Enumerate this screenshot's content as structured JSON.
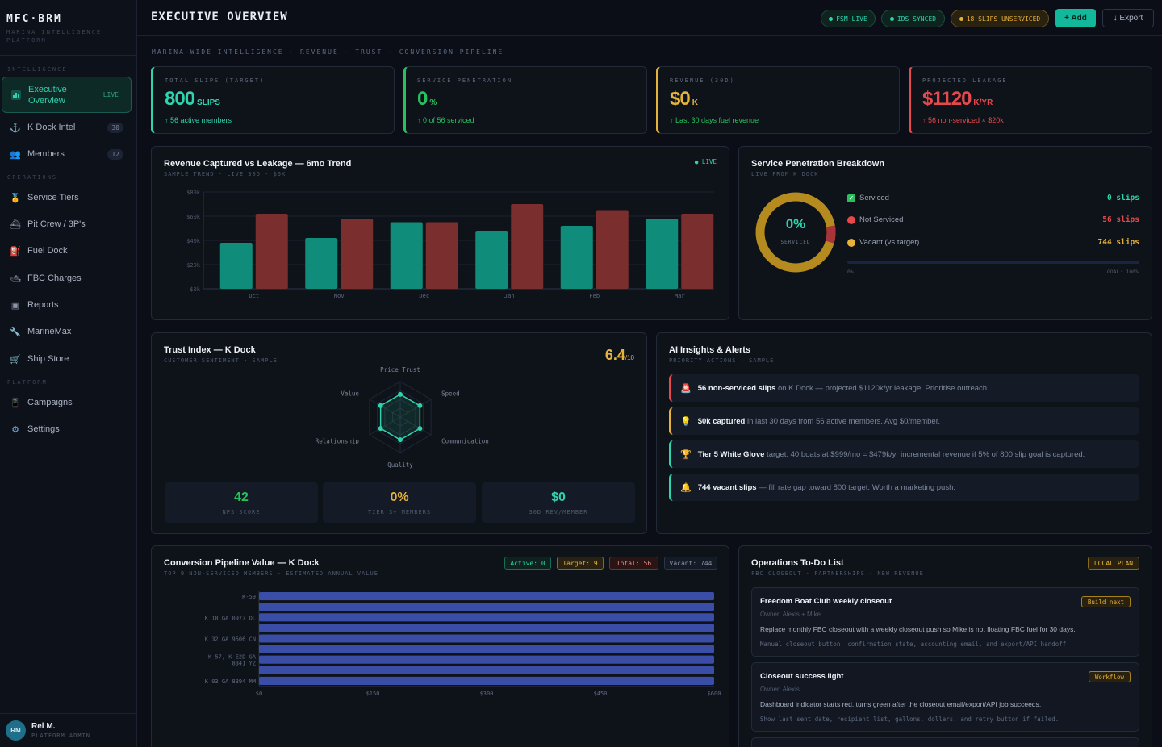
{
  "brand": {
    "name": "MFC·BRM",
    "subtitle": "MARINA INTELLIGENCE PLATFORM"
  },
  "sidebar": {
    "sections": [
      "INTELLIGENCE",
      "OPERATIONS",
      "PLATFORM"
    ],
    "items": [
      {
        "label": "Executive Overview",
        "icon": "bar-chart-icon",
        "badge": "LIVE",
        "active": true
      },
      {
        "label": "K Dock Intel",
        "icon": "anchor-icon",
        "badge": "30"
      },
      {
        "label": "Members",
        "icon": "members-icon",
        "badge": "12"
      },
      {
        "label": "Service Tiers",
        "icon": "medal-icon"
      },
      {
        "label": "Pit Crew / 3P's",
        "icon": "boat-icon"
      },
      {
        "label": "Fuel Dock",
        "icon": "fuel-icon"
      },
      {
        "label": "FBC Charges",
        "icon": "ship-icon"
      },
      {
        "label": "Reports",
        "icon": "reports-icon"
      },
      {
        "label": "MarineMax",
        "icon": "wrench-icon"
      },
      {
        "label": "Ship Store",
        "icon": "cart-icon"
      },
      {
        "label": "Campaigns",
        "icon": "phone-icon"
      },
      {
        "label": "Settings",
        "icon": "gear-icon"
      }
    ]
  },
  "user": {
    "initials": "RM",
    "name": "Rel M.",
    "role": "PLATFORM ADMIN"
  },
  "header": {
    "title": "EXECUTIVE OVERVIEW",
    "pills": [
      "FSM LIVE",
      "IDS SYNCED",
      "18 SLIPS UNSERVICED"
    ],
    "add_label": "+ Add",
    "export_label": "↓ Export"
  },
  "subtitle": "MARINA-WIDE INTELLIGENCE · REVENUE · TRUST · CONVERSION PIPELINE",
  "kpis": [
    {
      "label": "TOTAL SLIPS (TARGET)",
      "value": "800",
      "unit": "SLIPS",
      "foot": "↑ 56 active members",
      "color": "#2fd3ae"
    },
    {
      "label": "SERVICE PENETRATION",
      "value": "0",
      "unit": "%",
      "foot": "↑ 0 of 56 serviced",
      "color": "#27c15e"
    },
    {
      "label": "REVENUE (30D)",
      "value": "$0",
      "unit": "K",
      "foot": "↑ Last 30 days fuel revenue",
      "color": "#e6b23a"
    },
    {
      "label": "PROJECTED LEAKAGE",
      "value": "$1120",
      "unit": "K/YR",
      "foot": "↑ 56 non-serviced × $20k",
      "color": "#e5484d"
    }
  ],
  "revenue_chart": {
    "title": "Revenue Captured vs Leakage — 6mo Trend",
    "sub": "SAMPLE TREND · LIVE 30D · $0K",
    "live": "● LIVE"
  },
  "penetration": {
    "title": "Service Penetration Breakdown",
    "sub": "LIVE FROM K DOCK",
    "center_value": "0%",
    "center_label": "SERVICED",
    "rows": [
      {
        "icon": "check-icon",
        "label": "Serviced",
        "value": "0 slips",
        "color": "#2fd3ae"
      },
      {
        "icon": "red-dot-icon",
        "label": "Not Serviced",
        "value": "56 slips",
        "color": "#e5484d"
      },
      {
        "icon": "yellow-dot-icon",
        "label": "Vacant (vs target)",
        "value": "744 slips",
        "color": "#e6b23a"
      }
    ],
    "progress": 0,
    "bar_left": "0%",
    "bar_right": "GOAL: 100%"
  },
  "trust": {
    "title": "Trust Index — K Dock",
    "sub": "CUSTOMER SENTIMENT · SAMPLE",
    "score": "6.4",
    "score_max": "/10",
    "axes": [
      "Price Trust",
      "Speed",
      "Communication",
      "Quality",
      "Relationship",
      "Value"
    ],
    "stats": [
      {
        "value": "42",
        "label": "NPS SCORE",
        "color": "#27c15e"
      },
      {
        "value": "0%",
        "label": "TIER 3+ MEMBERS",
        "color": "#e6b23a"
      },
      {
        "value": "$0",
        "label": "30D REV/MEMBER",
        "color": "#2fd3ae"
      }
    ]
  },
  "insights": {
    "title": "AI Insights & Alerts",
    "sub": "PRIORITY ACTIONS · SAMPLE",
    "alerts": [
      {
        "icon": "siren-icon",
        "bold": "56 non-serviced slips",
        "text": " on K Dock — projected $1120k/yr leakage. Prioritise outreach.",
        "color": "#e5484d"
      },
      {
        "icon": "bulb-icon",
        "bold": "$0k captured",
        "text": " in last 30 days from 56 active members. Avg $0/member.",
        "color": "#e6b23a"
      },
      {
        "icon": "trophy-icon",
        "bold": "Tier 5 White Glove",
        "text": " target: 40 boats at $999/mo = $479k/yr incremental revenue if 5% of 800 slip goal is captured.",
        "color": "#2fd3ae"
      },
      {
        "icon": "bell-icon",
        "bold": "744 vacant slips",
        "text": " — fill rate gap toward 800 target. Worth a marketing push.",
        "color": "#2fd3ae"
      }
    ]
  },
  "pipeline": {
    "title": "Conversion Pipeline Value — K Dock",
    "sub": "TOP 9 NON-SERVICED MEMBERS · ESTIMATED ANNUAL VALUE",
    "tags": [
      "Active: 0",
      "Target: 9",
      "Total: 56",
      "Vacant: 744"
    ]
  },
  "todo": {
    "title": "Operations To-Do List",
    "sub": "FBC CLOSEOUT · PARTNERSHIPS · NEW REVENUE",
    "plan": "LOCAL PLAN",
    "items": [
      {
        "title": "Freedom Boat Club weekly closeout",
        "owner": "Owner: Alexis + Mike",
        "desc": "Replace monthly FBC closeout with a weekly closeout push so Mike is not floating FBC fuel for 30 days.",
        "note": "Manual closeout button, confirmation state, accounting email, and export/API handoff.",
        "tag": "Build next"
      },
      {
        "title": "Closeout success light",
        "owner": "Owner: Alexis",
        "desc": "Dashboard indicator starts red, turns green after the closeout email/export/API job succeeds.",
        "note": "Show last sent date, recipient list, gallons, dollars, and retry button if failed.",
        "tag": "Workflow"
      }
    ]
  },
  "chart_data": [
    {
      "type": "bar",
      "title": "Revenue Captured vs Leakage — 6mo Trend",
      "categories": [
        "Oct",
        "Nov",
        "Dec",
        "Jan",
        "Feb",
        "Mar"
      ],
      "series": [
        {
          "values": [
            38,
            42,
            55,
            48,
            52,
            58
          ],
          "color": "#0f8c7a"
        },
        {
          "values": [
            62,
            58,
            55,
            70,
            65,
            62
          ],
          "color": "#7a2e2e"
        }
      ],
      "yticks": [
        "$0k",
        "$20k",
        "$40k",
        "$60k",
        "$80k"
      ],
      "ylim": [
        0,
        80
      ]
    },
    {
      "type": "bar",
      "orientation": "horizontal",
      "title": "Conversion Pipeline Value — K Dock",
      "categories": [
        "K-59",
        "",
        "K 18 GA 0977 DL",
        "",
        "K 32 GA 9506 CN",
        "",
        "K 57, K E2D GA 8341 YZ",
        "",
        "K 03 GA 8394 MM"
      ],
      "values": [
        600,
        600,
        600,
        600,
        600,
        600,
        600,
        600,
        600
      ],
      "xticks": [
        "$0",
        "$150",
        "$300",
        "$450",
        "$600"
      ],
      "xlim": [
        0,
        600
      ],
      "color": "#3a4ea8"
    },
    {
      "type": "radar",
      "title": "Trust Index — K Dock",
      "axes": [
        "Price Trust",
        "Speed",
        "Communication",
        "Quality",
        "Relationship",
        "Value"
      ],
      "values": [
        6.4,
        6.4,
        6.4,
        6.4,
        6.4,
        6.4
      ],
      "max": 10
    }
  ]
}
